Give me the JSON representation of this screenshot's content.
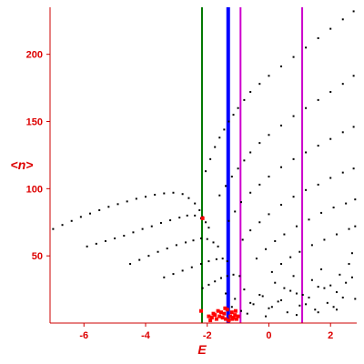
{
  "chart_data": {
    "type": "scatter",
    "xlabel": "E",
    "ylabel": "<n>",
    "xlim": [
      -7.1,
      2.85
    ],
    "ylim": [
      0,
      235
    ],
    "grid": false,
    "x_ticks": [
      {
        "value": -6,
        "label": "-6"
      },
      {
        "value": -4,
        "label": "-4"
      },
      {
        "value": -2,
        "label": "-2"
      },
      {
        "value": 0,
        "label": "0"
      },
      {
        "value": 2,
        "label": "2"
      }
    ],
    "y_ticks": [
      {
        "value": 50,
        "label": "50"
      },
      {
        "value": 100,
        "label": "100"
      },
      {
        "value": 150,
        "label": "150"
      },
      {
        "value": 200,
        "label": "200"
      }
    ],
    "vertical_lines": [
      {
        "x": -2.17,
        "color": "#007700",
        "width": 2
      },
      {
        "x": -1.32,
        "color": "#0000ff",
        "width": 4
      },
      {
        "x": -0.92,
        "color": "#cc00cc",
        "width": 2
      },
      {
        "x": 1.08,
        "color": "#cc00cc",
        "width": 2
      }
    ],
    "series": [
      {
        "color": "#000000",
        "x": [
          -7.0,
          -6.7,
          -6.4,
          -6.1,
          -5.8,
          -5.5,
          -5.2,
          -4.9,
          -4.6,
          -4.3,
          -4.0,
          -3.7,
          -3.4,
          -3.1,
          -2.8,
          -2.6,
          -2.4,
          -2.25,
          -2.15
        ],
        "y": [
          70,
          73,
          76,
          79,
          81.5,
          84,
          86.5,
          88.5,
          90.5,
          92.5,
          94,
          95.5,
          96.5,
          97,
          96,
          93,
          89,
          84,
          79
        ]
      },
      {
        "color": "#000000",
        "x": [
          -5.9,
          -5.6,
          -5.3,
          -5.0,
          -4.7,
          -4.4,
          -4.1,
          -3.8,
          -3.5,
          -3.2,
          -2.9,
          -2.65,
          -2.4,
          -2.2,
          -2.05,
          -1.95
        ],
        "y": [
          57,
          59,
          61,
          63,
          65,
          67.5,
          70,
          72,
          74.5,
          76.5,
          78.5,
          80,
          80,
          78,
          75,
          71
        ]
      },
      {
        "color": "#000000",
        "x": [
          -4.5,
          -4.2,
          -3.9,
          -3.6,
          -3.3,
          -3.0,
          -2.7,
          -2.45,
          -2.2,
          -2.0,
          -1.8,
          -1.65
        ],
        "y": [
          44,
          47,
          50,
          53,
          55.5,
          58,
          60,
          61.5,
          63,
          62.5,
          60,
          57
        ]
      },
      {
        "color": "#000000",
        "x": [
          -3.4,
          -3.1,
          -2.8,
          -2.5,
          -2.2,
          -1.95,
          -1.7,
          -1.5,
          -1.35
        ],
        "y": [
          34,
          36.5,
          39,
          41.5,
          44,
          46,
          47.5,
          48,
          46
        ]
      },
      {
        "color": "#000000",
        "x": [
          -2.15,
          -1.95,
          -1.75,
          -1.55,
          -1.35,
          -1.15,
          -0.95
        ],
        "y": [
          26,
          28.5,
          31,
          33.5,
          35,
          36,
          35
        ]
      },
      {
        "color": "#000000",
        "x": [
          -2.05,
          -1.9,
          -1.75,
          -1.6,
          -1.45,
          -1.3,
          -1.15,
          -1.0,
          -0.8,
          -0.6,
          -0.3,
          0.0,
          0.4,
          0.8,
          1.2,
          1.6,
          2.0,
          2.4,
          2.75
        ],
        "y": [
          113,
          122,
          131,
          138,
          144,
          150,
          155,
          160,
          166,
          172,
          178,
          184,
          191,
          198,
          205,
          212,
          219,
          226,
          232
        ]
      },
      {
        "color": "#000000",
        "x": [
          -1.6,
          -1.4,
          -1.2,
          -1.0,
          -0.8,
          -0.6,
          -0.3,
          0.0,
          0.4,
          0.8,
          1.2,
          1.6,
          2.0,
          2.4,
          2.75
        ],
        "y": [
          95,
          102,
          109,
          115,
          121,
          127,
          134,
          140,
          147,
          154,
          160,
          166,
          172,
          178,
          184
        ]
      },
      {
        "color": "#000000",
        "x": [
          -1.3,
          -1.1,
          -0.9,
          -0.6,
          -0.3,
          0.0,
          0.4,
          0.8,
          1.2,
          1.6,
          2.0,
          2.4,
          2.75
        ],
        "y": [
          76,
          83,
          90,
          97,
          103,
          109,
          116,
          122,
          127,
          132,
          137,
          142,
          146
        ]
      },
      {
        "color": "#000000",
        "x": [
          -0.85,
          -0.6,
          -0.3,
          0.0,
          0.4,
          0.8,
          1.2,
          1.6,
          2.0,
          2.4,
          2.75
        ],
        "y": [
          62,
          69,
          75,
          81,
          88,
          94,
          99,
          103,
          108,
          112,
          115
        ]
      },
      {
        "color": "#000000",
        "x": [
          -0.4,
          -0.1,
          0.2,
          0.5,
          0.9,
          1.3,
          1.7,
          2.1,
          2.5,
          2.8
        ],
        "y": [
          48,
          55,
          61,
          66,
          72,
          77,
          82,
          86,
          89,
          92
        ]
      },
      {
        "color": "#000000",
        "x": [
          0.1,
          0.4,
          0.7,
          1.0,
          1.4,
          1.8,
          2.2,
          2.6,
          2.8
        ],
        "y": [
          38,
          44,
          49,
          53,
          58,
          62,
          66,
          70,
          72
        ]
      },
      {
        "color": "#000000",
        "x": [
          -1.4,
          -1.1,
          -0.8,
          -0.5,
          -0.2,
          0.1,
          0.4,
          0.7,
          1.0,
          1.3,
          1.6,
          1.9,
          2.2,
          2.5,
          2.8,
          -0.9,
          -0.6,
          -0.3,
          0.0,
          0.3,
          0.6,
          0.9,
          1.2,
          1.5,
          1.8,
          2.1,
          2.4,
          2.7,
          0.2,
          0.5,
          0.8,
          1.1,
          1.4,
          1.7,
          2.0,
          2.3,
          2.6,
          -1.2,
          -0.7,
          -0.1,
          0.9,
          1.6,
          2.2,
          2.7
        ],
        "y": [
          22,
          18,
          25,
          14,
          20,
          12,
          17,
          24,
          13,
          19,
          27,
          15,
          23,
          30,
          18,
          9,
          15,
          21,
          11,
          16,
          8,
          22,
          14,
          10,
          26,
          12,
          19,
          34,
          30,
          26,
          35,
          21,
          32,
          40,
          28,
          36,
          44,
          12,
          7,
          5,
          6,
          8,
          10,
          52
        ]
      }
    ],
    "red_points": {
      "color": "#ff0000",
      "x": [
        -2.2,
        -1.95,
        -1.85,
        -1.75,
        -1.7,
        -1.6,
        -1.55,
        -1.5,
        -1.45,
        -1.4,
        -1.35,
        -1.25,
        -1.2,
        -1.15,
        -1.1,
        -1.05,
        -1.0,
        -1.9,
        -1.8,
        -1.65,
        -1.42,
        -1.3,
        -1.18,
        -1.08,
        -2.15
      ],
      "y": [
        9,
        5,
        4,
        6,
        3,
        5,
        8,
        4,
        7,
        3,
        10,
        5,
        8,
        4,
        6,
        3,
        5,
        2,
        7,
        9,
        11,
        2,
        3,
        9,
        78
      ]
    }
  }
}
